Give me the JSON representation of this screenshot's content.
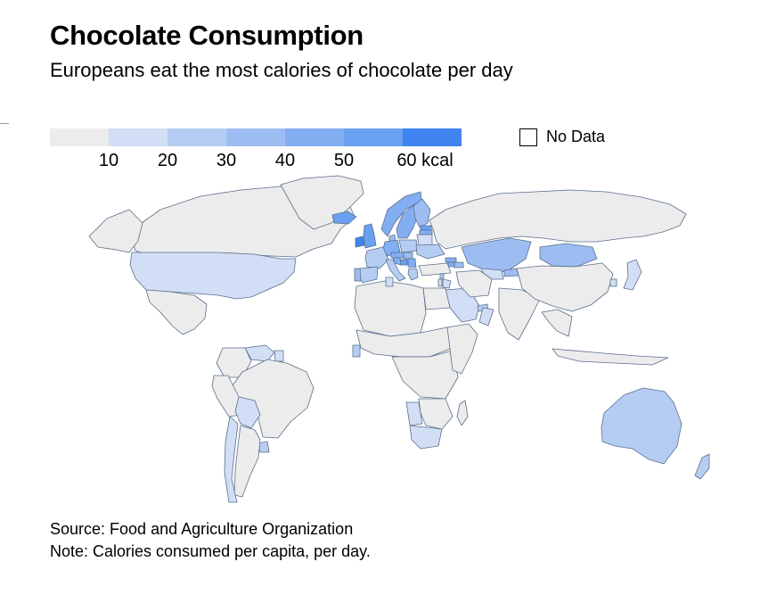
{
  "header": {
    "title": "Chocolate Consumption",
    "subtitle": "Europeans eat the most calories of chocolate per day"
  },
  "legend": {
    "bins": [
      {
        "min": 0,
        "max": 10,
        "color": "#ececec"
      },
      {
        "min": 10,
        "max": 20,
        "color": "#d2def5"
      },
      {
        "min": 20,
        "max": 30,
        "color": "#b6cdf3"
      },
      {
        "min": 30,
        "max": 40,
        "color": "#9dbdf2"
      },
      {
        "min": 40,
        "max": 50,
        "color": "#83aef2"
      },
      {
        "min": 50,
        "max": 60,
        "color": "#6aa0f2"
      },
      {
        "min": 60,
        "max": 70,
        "color": "#3f84f1"
      }
    ],
    "labels": [
      "10",
      "20",
      "30",
      "40",
      "50",
      "60 kcal"
    ],
    "no_data_label": "No Data"
  },
  "footer": {
    "source": "Source: Food and Agriculture Organization",
    "note": "Note: Calories consumed per capita, per day."
  },
  "map_data": {
    "regions": [
      {
        "name": "Canada",
        "value": 5
      },
      {
        "name": "Alaska",
        "value": 5
      },
      {
        "name": "Greenland",
        "value": 5
      },
      {
        "name": "United States",
        "value": 15
      },
      {
        "name": "Mexico",
        "value": 5
      },
      {
        "name": "Venezuela",
        "value": 15
      },
      {
        "name": "Suriname",
        "value": 15
      },
      {
        "name": "Colombia",
        "value": 5
      },
      {
        "name": "Brazil",
        "value": 5
      },
      {
        "name": "Peru",
        "value": 5
      },
      {
        "name": "Bolivia",
        "value": 15
      },
      {
        "name": "Uruguay",
        "value": 25
      },
      {
        "name": "Argentina",
        "value": 5
      },
      {
        "name": "Chile",
        "value": 15
      },
      {
        "name": "Iceland",
        "value": 55
      },
      {
        "name": "Ireland",
        "value": 65
      },
      {
        "name": "United Kingdom",
        "value": 55
      },
      {
        "name": "Norway",
        "value": 45
      },
      {
        "name": "Sweden",
        "value": 45
      },
      {
        "name": "Finland",
        "value": 35
      },
      {
        "name": "Estonia",
        "value": 55
      },
      {
        "name": "Latvia",
        "value": 45
      },
      {
        "name": "Lithuania",
        "value": 55
      },
      {
        "name": "Denmark",
        "value": 35
      },
      {
        "name": "Germany",
        "value": 45
      },
      {
        "name": "Poland",
        "value": 25
      },
      {
        "name": "France",
        "value": 25
      },
      {
        "name": "Spain",
        "value": 25
      },
      {
        "name": "Portugal",
        "value": 35
      },
      {
        "name": "Italy",
        "value": 25
      },
      {
        "name": "Austria",
        "value": 45
      },
      {
        "name": "Hungary",
        "value": 35
      },
      {
        "name": "Serbia",
        "value": 45
      },
      {
        "name": "Bosnia and Herzegovina",
        "value": 55
      },
      {
        "name": "Croatia",
        "value": 45
      },
      {
        "name": "Greece",
        "value": 25
      },
      {
        "name": "Belarus",
        "value": 15
      },
      {
        "name": "Ukraine",
        "value": 25
      },
      {
        "name": "Russia",
        "value": 5
      },
      {
        "name": "Kazakhstan",
        "value": 35
      },
      {
        "name": "Mongolia",
        "value": 35
      },
      {
        "name": "Uzbekistan",
        "value": 15
      },
      {
        "name": "Kyrgyzstan",
        "value": 35
      },
      {
        "name": "Georgia",
        "value": 45
      },
      {
        "name": "Armenia",
        "value": 45
      },
      {
        "name": "Azerbaijan",
        "value": 35
      },
      {
        "name": "Turkey",
        "value": 5
      },
      {
        "name": "Saudi Arabia",
        "value": 15
      },
      {
        "name": "United Arab Emirates",
        "value": 25
      },
      {
        "name": "Oman",
        "value": 15
      },
      {
        "name": "Israel",
        "value": 15
      },
      {
        "name": "Lebanon",
        "value": 25
      },
      {
        "name": "Jordan",
        "value": 15
      },
      {
        "name": "Iran",
        "value": 5
      },
      {
        "name": "India",
        "value": 5
      },
      {
        "name": "China",
        "value": 5
      },
      {
        "name": "South Korea",
        "value": 15
      },
      {
        "name": "Japan",
        "value": 15
      },
      {
        "name": "Southeast Asia",
        "value": 5
      },
      {
        "name": "Indonesia",
        "value": 5
      },
      {
        "name": "Australia",
        "value": 25
      },
      {
        "name": "New Zealand",
        "value": 25
      },
      {
        "name": "North Africa",
        "value": 5
      },
      {
        "name": "Egypt",
        "value": 5
      },
      {
        "name": "Tunisia",
        "value": 15
      },
      {
        "name": "Sahel Africa",
        "value": 5
      },
      {
        "name": "Central Africa",
        "value": 5
      },
      {
        "name": "East Africa",
        "value": 5
      },
      {
        "name": "Ghana",
        "value": 25
      },
      {
        "name": "Southern Africa",
        "value": 5
      },
      {
        "name": "Namibia",
        "value": 15
      },
      {
        "name": "South Africa",
        "value": 15
      },
      {
        "name": "Madagascar",
        "value": 5
      }
    ]
  }
}
